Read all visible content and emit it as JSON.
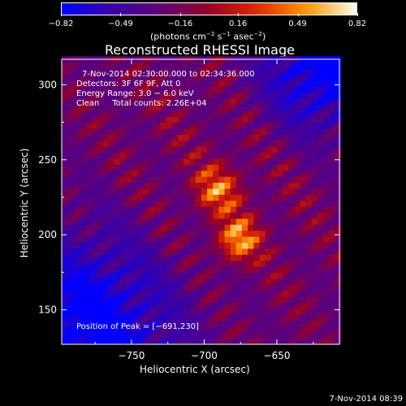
{
  "chart_data": {
    "type": "heatmap",
    "title": "Reconstructed RHESSI Image",
    "xlabel": "Heliocentric X (arcsec)",
    "ylabel": "Heliocentric Y (arcsec)",
    "xlim": [
      -798,
      -607
    ],
    "ylim": [
      127,
      317
    ],
    "x_ticks": [
      -750,
      -700,
      -650
    ],
    "x_tick_labels": [
      "−750",
      "−700",
      "−650"
    ],
    "y_ticks": [
      150,
      200,
      250,
      300
    ],
    "y_tick_labels": [
      "150",
      "200",
      "250",
      "300"
    ],
    "colorbar": {
      "range": [
        -0.82,
        0.82
      ],
      "ticks": [
        -0.82,
        -0.49,
        -0.16,
        0.16,
        0.49,
        0.82
      ],
      "tick_labels": [
        "−0.82",
        "−0.49",
        "−0.16",
        "0.16",
        "0.49",
        "0.82"
      ],
      "units_main": "(photons cm",
      "units_sup1": "−2",
      "units_mid": " s",
      "units_sup2": "−1",
      "units_mid2": " asec",
      "units_sup3": "−2",
      "units_end": ")"
    },
    "annotations": {
      "time_range": "7‑Nov‑2014 02:30:00.000 to 02:34:36.000",
      "detectors": "Detectors: 3F 6F 9F, Att 0",
      "energy": "Energy Range: 3.0 − 6.0 keV",
      "clean": "Clean     Total counts: 2.26E+04",
      "peak": "Position of Peak = [−691,230]"
    },
    "peak_position": [
      -691,
      230
    ],
    "secondary_source": [
      -677,
      197
    ],
    "fringe_angle_deg": 35,
    "fringe_period_arcsec": 14,
    "grid": false,
    "legend": "none"
  },
  "footer_timestamp": "7‑Nov‑2014 08:39",
  "colors": {
    "background": "#000000",
    "axes": "#ffffff"
  }
}
